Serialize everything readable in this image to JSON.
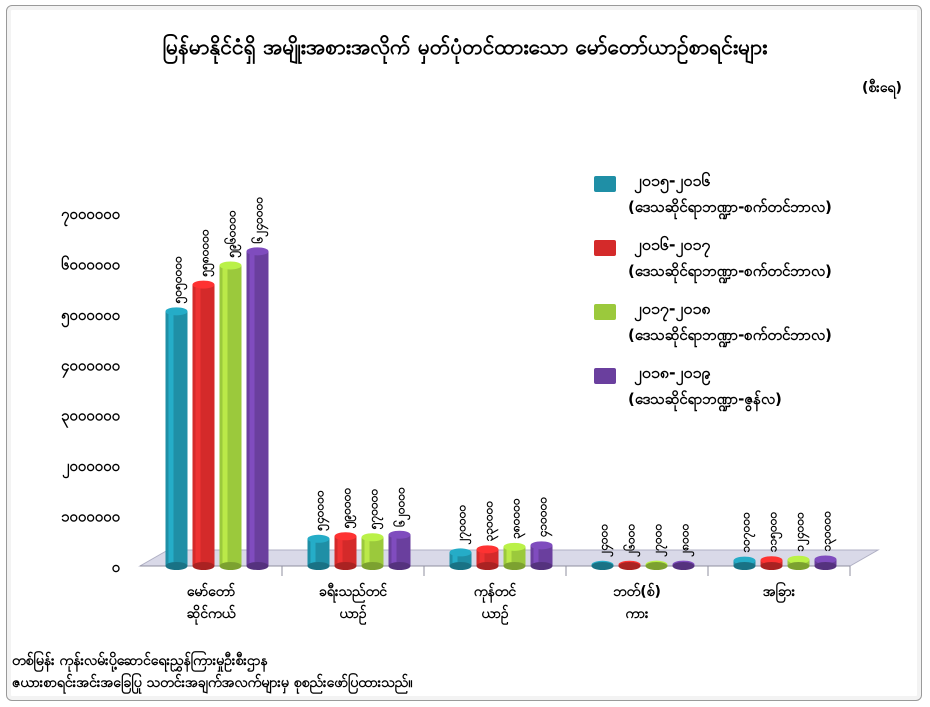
{
  "title": "မြန်မာနိုင်ငံရှိ အမျိုးအစားအလိုက် မှတ်ပုံတင်ထားသော မော်တော်ယာဉ်စာရင်းများ",
  "unit": "(စီးရေ)",
  "source_lines": [
    "တစ်မြန်း ကုန်းလမ်းပို့ဆောင်ရေးညွှန်ကြားမှုဦးစီးဌာန",
    "ဇယားစာရင်းအင်းအခြေပြု သတင်းအချက်အလက်များမှ စုစည်းဖော်ပြထားသည်။"
  ],
  "colors": {
    "series1": "#1f8fa6",
    "series2": "#d42a2a",
    "series3": "#9bc93c",
    "series4": "#6a3f9e",
    "floor": "#d9d9e8"
  },
  "chart_data": {
    "type": "bar",
    "categories": [
      "မော်တော်\nဆိုင်ကယ်",
      "ခရီးသည်တင်\nယာဉ်",
      "ကုန်တင်\nယာဉ်",
      "ဘတ်(စ်)\nကား",
      "အခြား"
    ],
    "ytick_labels": [
      "၀",
      "၁၀၀၀၀၀၀",
      "၂၀၀၀၀၀၀",
      "၃၀၀၀၀၀၀",
      "၄၀၀၀၀၀၀",
      "၅၀၀၀၀၀၀",
      "၆၀၀၀၀၀၀",
      "၇၀၀၀၀၀၀"
    ],
    "ylim": [
      0,
      7000000
    ],
    "ytick_step": 1000000,
    "legend_position": "right",
    "series": [
      {
        "name": "၂၀၁၅-၂၀၁၆",
        "subtitle": "(ဒေသဆိုင်ရာဘဏ္ဍာ-စက်တင်ဘာလ)",
        "values": [
          5050000,
          540000,
          270000,
          24000,
          107000
        ],
        "labels": [
          "၅၀၅၀၀၀၀",
          "၅၄၀၀၀၀",
          "၂၇၀၀၀၀",
          "၂၄၀၀၀",
          "၁၀၇၀၀၀"
        ]
      },
      {
        "name": "၂၀၁၆-၂၀၁၇",
        "subtitle": "(ဒေသဆိုင်ရာဘဏ္ဍာ-စက်တင်ဘာလ)",
        "values": [
          5580000,
          590000,
          330000,
          26000,
          115000
        ],
        "labels": [
          "၅၅၈၀၀၀၀",
          "၅၉၀၀၀၀",
          "၃၃၀၀၀၀",
          "၂၆၀၀၀",
          "၁၁၅၀၀၀"
        ]
      },
      {
        "name": "၂၀၁၇-၂၀၁၈",
        "subtitle": "(ဒေသဆိုင်ရာဘဏ္ဍာ-စက်တင်ဘာလ)",
        "values": [
          5960000,
          570000,
          380000,
          27000,
          124000
        ],
        "labels": [
          "၅၉၆၀၀၀၀",
          "၅၇၀၀၀၀",
          "၃၈၀၀၀၀",
          "၂၇၀၀၀",
          "၁၂၄၀၀၀"
        ]
      },
      {
        "name": "၂၀၁၈-၂၀၁၉",
        "subtitle": "(ဒေသဆိုင်ရာဘဏ္ဍာ-ဇွန်လ)",
        "values": [
          6240000,
          620000,
          410000,
          28000,
          130000
        ],
        "labels": [
          "၆၂၄၀၀၀၀",
          "၆၂၀၀၀၀",
          "၄၁၀၀၀၀",
          "၂၈၀၀၀",
          "၁၃၀၀၀၀"
        ]
      }
    ]
  }
}
